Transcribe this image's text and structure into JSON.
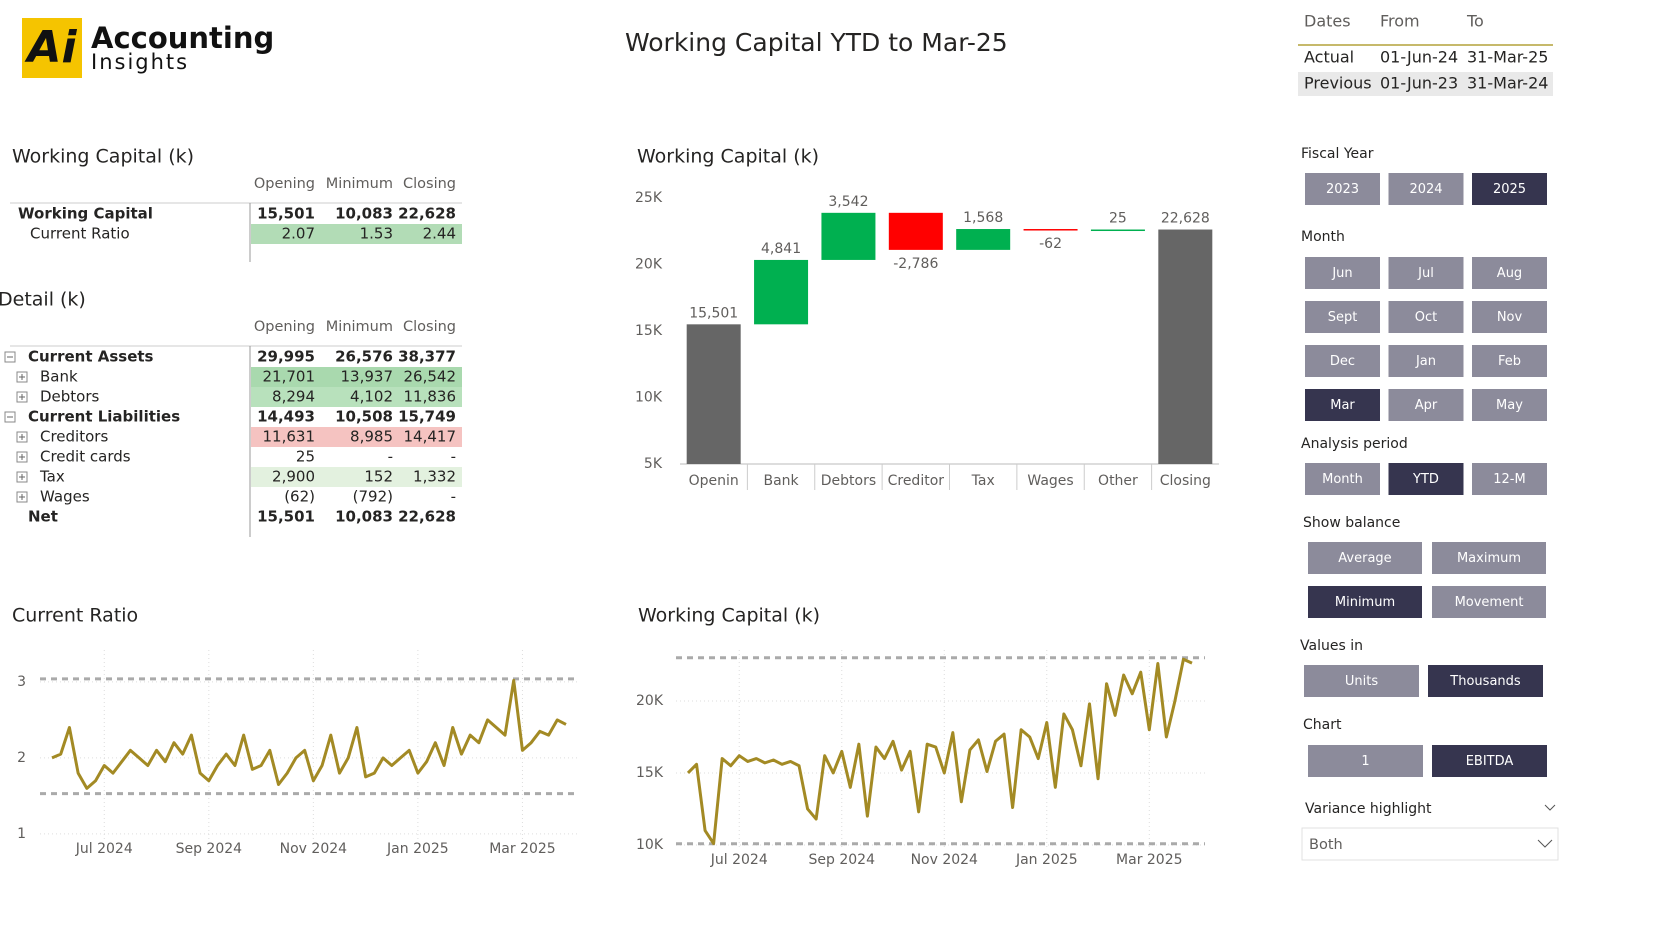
{
  "header": {
    "logo_mark": "Ai",
    "logo_line1": "Accounting",
    "logo_line2": "Insights",
    "title": "Working Capital YTD to Mar-25"
  },
  "dates_table": {
    "columns": [
      "Dates",
      "From",
      "To"
    ],
    "rows": [
      [
        "Actual",
        "01-Jun-24",
        "31-Mar-25"
      ],
      [
        "Previous",
        "01-Jun-23",
        "31-Mar-24"
      ]
    ]
  },
  "wc_table": {
    "title": "Working Capital (k)",
    "columns": [
      "Opening",
      "Minimum",
      "Closing"
    ],
    "rows": [
      {
        "label": "Working Capital",
        "values": [
          "15,501",
          "10,083",
          "22,628"
        ],
        "level": 0,
        "bold": true
      },
      {
        "label": "Current Ratio",
        "values": [
          "2.07",
          "1.53",
          "2.44"
        ],
        "level": 1,
        "fill": "#b2dcb6"
      }
    ]
  },
  "detail_table": {
    "title": "Detail (k)",
    "columns": [
      "Opening",
      "Minimum",
      "Closing"
    ],
    "rows": [
      {
        "label": "Current Assets",
        "values": [
          "29,995",
          "26,576",
          "38,377"
        ],
        "level": 0,
        "bold": true,
        "expander": "minus"
      },
      {
        "label": "Bank",
        "values": [
          "21,701",
          "13,937",
          "26,542"
        ],
        "level": 1,
        "expander": "plus",
        "fill": "#a9d9ae"
      },
      {
        "label": "Debtors",
        "values": [
          "8,294",
          "4,102",
          "11,836"
        ],
        "level": 1,
        "expander": "plus",
        "fill": "#b8e1bc"
      },
      {
        "label": "Current Liabilities",
        "values": [
          "14,493",
          "10,508",
          "15,749"
        ],
        "level": 0,
        "bold": true,
        "expander": "minus"
      },
      {
        "label": "Creditors",
        "values": [
          "11,631",
          "8,985",
          "14,417"
        ],
        "level": 1,
        "expander": "plus",
        "fill": "#f5c3c1"
      },
      {
        "label": "Credit cards",
        "values": [
          "25",
          "-",
          "-"
        ],
        "level": 1,
        "expander": "plus"
      },
      {
        "label": "Tax",
        "values": [
          "2,900",
          "152",
          "1,332"
        ],
        "level": 1,
        "expander": "plus",
        "fill": "#e3f1df"
      },
      {
        "label": "Wages",
        "values": [
          "(62)",
          "(792)",
          "-"
        ],
        "level": 1,
        "expander": "plus"
      },
      {
        "label": "Net",
        "values": [
          "15,501",
          "10,083",
          "22,628"
        ],
        "level": 0,
        "bold": true
      }
    ]
  },
  "chart_data": [
    {
      "type": "waterfall",
      "title": "Working Capital (k)",
      "categories": [
        "Openin",
        "Bank",
        "Debtors",
        "Creditor",
        "Tax",
        "Wages",
        "Other",
        "Closing"
      ],
      "values": [
        15501,
        4841,
        3542,
        -2786,
        1568,
        -62,
        25,
        22628
      ],
      "value_labels": [
        "15,501",
        "4,841",
        "3,542",
        "-2,786",
        "1,568",
        "-62",
        "25",
        "22,628"
      ],
      "total_color": "#666666",
      "increase_color": "#00b050",
      "decrease_color": "#ff0000",
      "ylim": [
        5000,
        25600
      ],
      "yticks": [
        {
          "value": 5000,
          "label": "5K"
        },
        {
          "value": 10000,
          "label": "10K"
        },
        {
          "value": 15000,
          "label": "15K"
        },
        {
          "value": 20000,
          "label": "20K"
        },
        {
          "value": 25000,
          "label": "25K"
        }
      ]
    },
    {
      "type": "line",
      "title": "Current Ratio",
      "color": "#a38a24",
      "grid": true,
      "values": [
        2.0,
        2.05,
        2.4,
        1.8,
        1.6,
        1.7,
        1.9,
        1.8,
        1.95,
        2.1,
        2.0,
        1.9,
        2.1,
        1.95,
        2.2,
        2.05,
        2.3,
        1.8,
        1.7,
        1.9,
        2.05,
        1.9,
        2.3,
        1.85,
        1.9,
        2.1,
        1.65,
        1.8,
        2.0,
        2.1,
        1.7,
        1.9,
        2.3,
        1.8,
        2.0,
        2.4,
        1.75,
        1.8,
        2.0,
        1.9,
        2.0,
        2.1,
        1.8,
        1.95,
        2.2,
        1.9,
        2.4,
        2.05,
        2.3,
        2.2,
        2.5,
        2.4,
        2.3,
        3.02,
        2.1,
        2.2,
        2.35,
        2.3,
        2.5,
        2.44
      ],
      "xlim": [
        0,
        59
      ],
      "xticks": [
        {
          "value": 6,
          "label": "Jul 2024"
        },
        {
          "value": 18,
          "label": "Sep 2024"
        },
        {
          "value": 30,
          "label": "Nov 2024"
        },
        {
          "value": 42,
          "label": "Jan 2025"
        },
        {
          "value": 54,
          "label": "Mar 2025"
        }
      ],
      "ylim": [
        0.92,
        3.42
      ],
      "yticks": [
        1,
        2,
        3
      ],
      "reference_lines": [
        3.04,
        1.53
      ]
    },
    {
      "type": "line",
      "title": "Working Capital (k)",
      "color": "#a38a24",
      "grid": true,
      "values": [
        15000,
        15600,
        11000,
        10100,
        16000,
        15500,
        16200,
        15800,
        16000,
        15700,
        15900,
        15600,
        15800,
        15500,
        12500,
        11800,
        16200,
        15000,
        16500,
        14000,
        17000,
        12000,
        16800,
        16000,
        17200,
        15200,
        16500,
        12300,
        17000,
        16800,
        15000,
        17800,
        13000,
        16600,
        17300,
        15100,
        17200,
        17700,
        12600,
        18000,
        17500,
        16000,
        18500,
        14000,
        19100,
        18000,
        15500,
        19800,
        14600,
        21200,
        19000,
        21800,
        20500,
        22000,
        18000,
        22600,
        17500,
        20000,
        22900,
        22628
      ],
      "xlim": [
        0,
        59
      ],
      "xticks": [
        {
          "value": 6,
          "label": "Jul 2024"
        },
        {
          "value": 18,
          "label": "Sep 2024"
        },
        {
          "value": 30,
          "label": "Nov 2024"
        },
        {
          "value": 42,
          "label": "Jan 2025"
        },
        {
          "value": 54,
          "label": "Mar 2025"
        }
      ],
      "ylim": [
        9650,
        23540
      ],
      "yticks": [
        {
          "value": 10000,
          "label": "10K"
        },
        {
          "value": 15000,
          "label": "15K"
        },
        {
          "value": 20000,
          "label": "20K"
        }
      ],
      "reference_lines": [
        23000,
        10083
      ]
    }
  ],
  "slicers": [
    {
      "label": "Fiscal Year",
      "options": [
        "2023",
        "2024",
        "2025"
      ],
      "selected": 2
    },
    {
      "label": "Month",
      "options": [
        "Jun",
        "Jul",
        "Aug",
        "Sept",
        "Oct",
        "Nov",
        "Dec",
        "Jan",
        "Feb",
        "Mar",
        "Apr",
        "May"
      ],
      "selected": 9
    },
    {
      "label": "Analysis period",
      "options": [
        "Month",
        "YTD",
        "12-M"
      ],
      "selected": 1
    },
    {
      "label": "Show balance",
      "options": [
        "Average",
        "Maximum",
        "Minimum",
        "Movement"
      ],
      "selected": 2
    },
    {
      "label": "Values in",
      "options": [
        "Units",
        "Thousands"
      ],
      "selected": 1
    },
    {
      "label": "Chart",
      "options": [
        "1",
        "EBITDA"
      ],
      "selected": 1
    }
  ],
  "dropdown": {
    "label": "Variance highlight",
    "value": "Both"
  }
}
